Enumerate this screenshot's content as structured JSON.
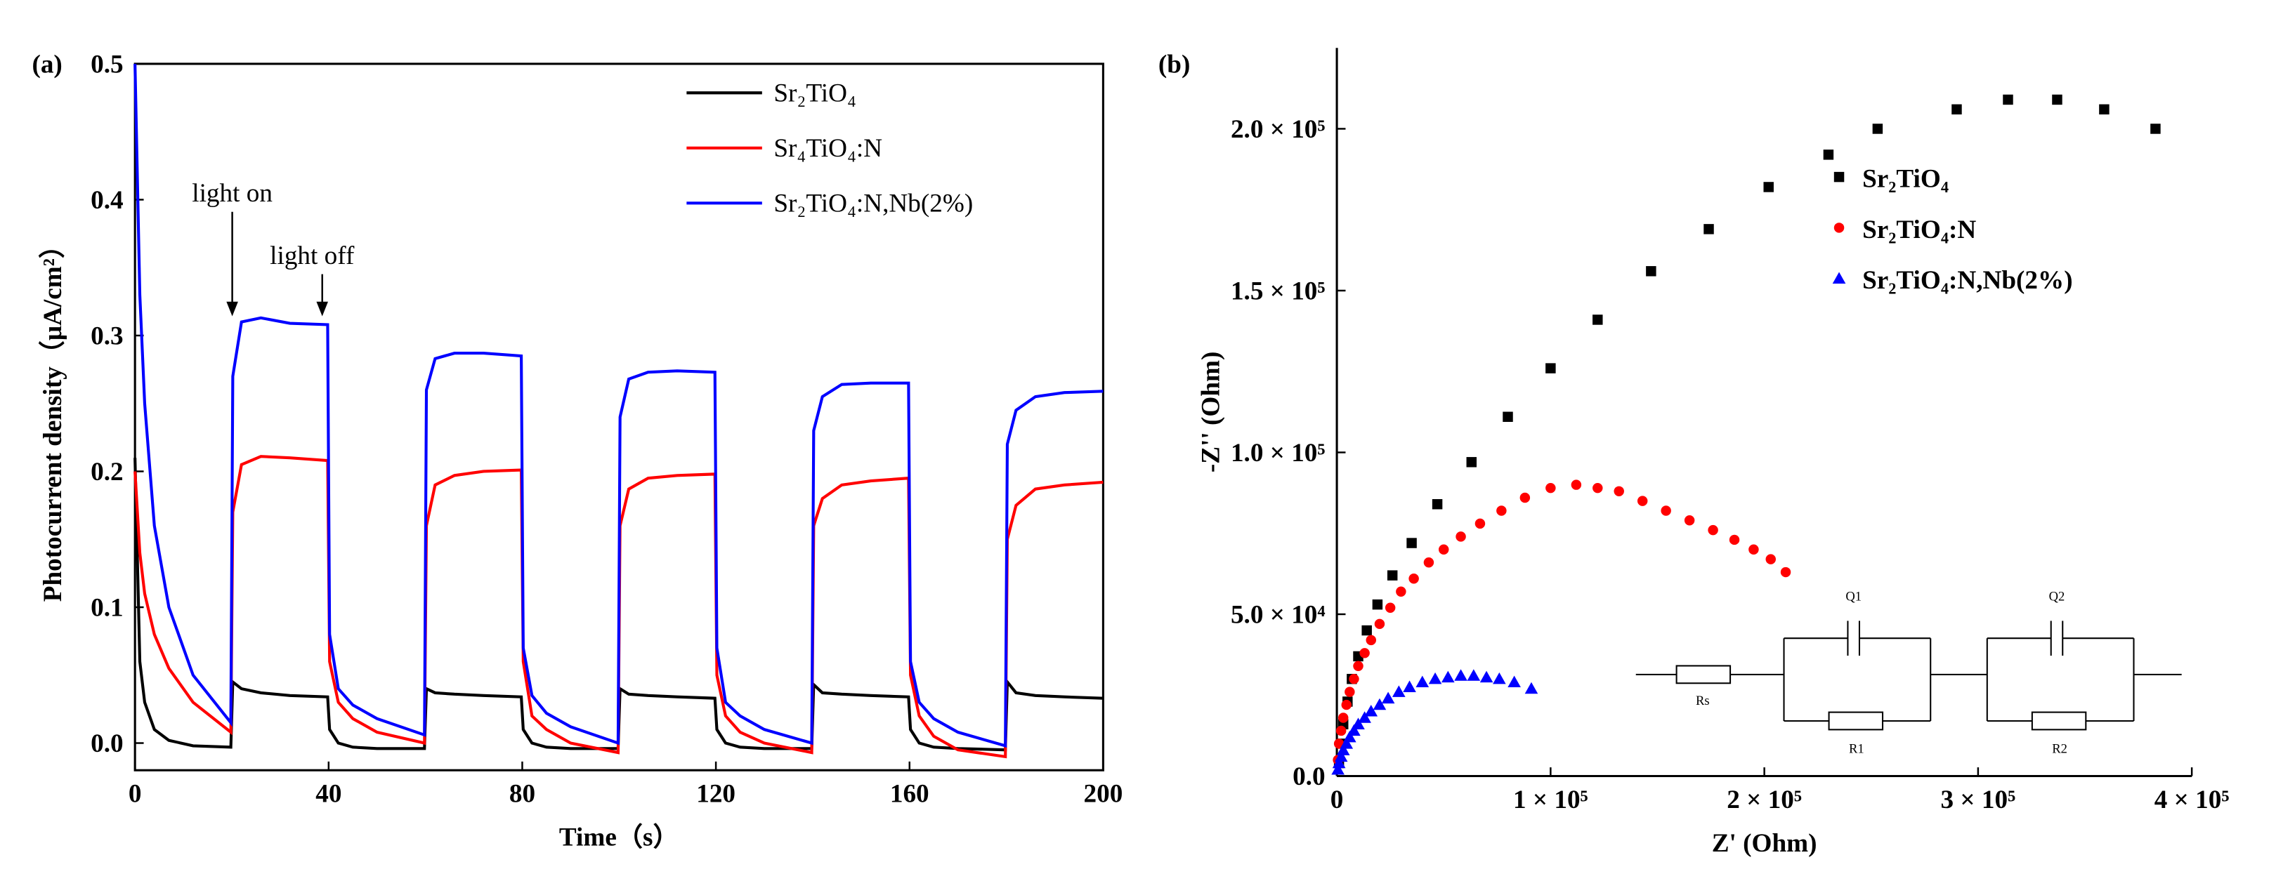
{
  "chart_data": [
    {
      "type": "line",
      "panel": "(a)",
      "x_label": "Time（s）",
      "y_label": "Photocurrent density（μA/cm²）",
      "annotations": [
        "light on",
        "light off"
      ],
      "x": [
        0,
        1,
        2,
        4,
        7,
        12,
        19.8,
        20.2,
        22,
        26,
        32,
        39.8,
        40.2,
        42,
        45,
        50,
        59.8,
        60.2,
        62,
        66,
        72,
        79.8,
        80.2,
        82,
        85,
        90,
        99.8,
        100.2,
        102,
        106,
        112,
        119.8,
        120.2,
        122,
        125,
        130,
        139.8,
        140.2,
        142,
        146,
        152,
        159.8,
        160.2,
        162,
        165,
        170,
        179.8,
        180.2,
        182,
        186,
        192,
        200
      ],
      "series": [
        {
          "name": "Sr₂TiO₄",
          "color": "#000000",
          "values": [
            0.21,
            0.06,
            0.03,
            0.01,
            0.002,
            -0.002,
            -0.003,
            0.045,
            0.04,
            0.037,
            0.035,
            0.034,
            0.01,
            0,
            -0.003,
            -0.004,
            -0.004,
            0.04,
            0.037,
            0.036,
            0.035,
            0.034,
            0.01,
            0,
            -0.003,
            -0.004,
            -0.004,
            0.04,
            0.036,
            0.035,
            0.034,
            0.033,
            0.01,
            0,
            -0.003,
            -0.004,
            -0.004,
            0.043,
            0.037,
            0.036,
            0.035,
            0.034,
            0.01,
            0,
            -0.003,
            -0.004,
            -0.005,
            0.045,
            0.037,
            0.035,
            0.034,
            0.033
          ]
        },
        {
          "name": "Sr₄TiO₄:N",
          "color": "#ff0000",
          "values": [
            0.2,
            0.14,
            0.11,
            0.08,
            0.055,
            0.03,
            0.008,
            0.17,
            0.205,
            0.211,
            0.21,
            0.208,
            0.06,
            0.03,
            0.018,
            0.008,
            0,
            0.16,
            0.19,
            0.197,
            0.2,
            0.201,
            0.06,
            0.02,
            0.01,
            0,
            -0.007,
            0.16,
            0.187,
            0.195,
            0.197,
            0.198,
            0.05,
            0.02,
            0.008,
            0,
            -0.007,
            0.16,
            0.18,
            0.19,
            0.193,
            0.195,
            0.05,
            0.02,
            0.005,
            -0.005,
            -0.01,
            0.15,
            0.175,
            0.187,
            0.19,
            0.192
          ]
        },
        {
          "name": "Sr₂TiO₄:N,Nb(2%)",
          "color": "#0000ff",
          "values": [
            0.5,
            0.33,
            0.25,
            0.16,
            0.1,
            0.05,
            0.015,
            0.27,
            0.31,
            0.313,
            0.309,
            0.308,
            0.08,
            0.04,
            0.028,
            0.018,
            0.006,
            0.26,
            0.283,
            0.287,
            0.287,
            0.285,
            0.07,
            0.035,
            0.022,
            0.012,
            0,
            0.24,
            0.268,
            0.273,
            0.274,
            0.273,
            0.07,
            0.03,
            0.02,
            0.01,
            0,
            0.23,
            0.255,
            0.264,
            0.265,
            0.265,
            0.06,
            0.03,
            0.018,
            0.008,
            -0.002,
            0.22,
            0.245,
            0.255,
            0.258,
            0.259
          ]
        }
      ],
      "xlim": [
        0,
        200
      ],
      "xticks": [
        0,
        40,
        80,
        120,
        160,
        200
      ],
      "ylim": [
        -0.02,
        0.5
      ],
      "yticks": [
        {
          "value": 0,
          "label": "0.0"
        },
        0.1,
        0.2,
        0.3,
        0.4,
        0.5
      ],
      "legend": "upper right",
      "frame": "box"
    },
    {
      "type": "scatter",
      "panel": "(b)",
      "x_label": "Z' (Ohm)",
      "y_label": "-Z'' (Ohm)",
      "circuit_labels": [
        "Rs",
        "Q1",
        "R1",
        "Q2",
        "R2"
      ],
      "series": [
        {
          "name": "Sr₂TiO₄",
          "color": "#000000",
          "marker": "square",
          "x": [
            1000,
            2000,
            3000,
            5000,
            7000,
            10000,
            14000,
            19000,
            26000,
            35000,
            47000,
            63000,
            80000,
            100000,
            122000,
            147000,
            174000,
            202000,
            230000,
            253000,
            290000,
            314000,
            337000,
            359000,
            383000
          ],
          "values": [
            4000,
            10000,
            16000,
            23000,
            30000,
            37000,
            45000,
            53000,
            62000,
            72000,
            84000,
            97000,
            111000,
            126000,
            141000,
            156000,
            169000,
            182000,
            192000,
            200000,
            206000,
            209000,
            209000,
            206000,
            200000
          ]
        },
        {
          "name": "Sr₂TiO₄:N",
          "color": "#ff0000",
          "marker": "circle",
          "x": [
            500,
            1000,
            2000,
            3000,
            4500,
            6000,
            8000,
            10000,
            13000,
            16000,
            20000,
            25000,
            30000,
            36000,
            43000,
            50000,
            58000,
            67000,
            77000,
            88000,
            100000,
            112000,
            122000,
            132000,
            143000,
            154000,
            165000,
            176000,
            186000,
            195000,
            203000,
            210000
          ],
          "values": [
            5000,
            10000,
            14000,
            18000,
            22000,
            26000,
            30000,
            34000,
            38000,
            42000,
            47000,
            52000,
            57000,
            61000,
            66000,
            70000,
            74000,
            78000,
            82000,
            86000,
            89000,
            90000,
            89000,
            88000,
            85000,
            82000,
            79000,
            76000,
            73000,
            70000,
            67000,
            63000
          ]
        },
        {
          "name": "Sr₂TiO₄:N,Nb(2%)",
          "color": "#0000ff",
          "marker": "triangle",
          "x": [
            500,
            1000,
            2000,
            3000,
            4500,
            6000,
            8000,
            10000,
            13000,
            16000,
            20000,
            24000,
            29000,
            34000,
            40000,
            46000,
            52000,
            58000,
            64000,
            70000,
            76000,
            83000,
            91000
          ],
          "values": [
            2000,
            4000,
            6000,
            8000,
            10000,
            12000,
            14000,
            16000,
            18000,
            20000,
            22000,
            24000,
            26000,
            27500,
            29000,
            30000,
            30500,
            31000,
            31000,
            30500,
            30000,
            29000,
            27000
          ]
        }
      ],
      "xlim": [
        0,
        400000
      ],
      "xticks": [
        0,
        {
          "value": 100000,
          "label": "1 × 10⁵"
        },
        {
          "value": 200000,
          "label": "2 × 10⁵"
        },
        {
          "value": 300000,
          "label": "3 × 10⁵"
        },
        {
          "value": 400000,
          "label": "4 × 10⁵"
        }
      ],
      "ylim": [
        0,
        225000
      ],
      "yticks": [
        {
          "value": 0,
          "label": "0.0"
        },
        {
          "value": 50000,
          "label": "5.0 × 10⁴"
        },
        {
          "value": 100000,
          "label": "1.0 × 10⁵"
        },
        {
          "value": 150000,
          "label": "1.5 × 10⁵"
        },
        {
          "value": 200000,
          "label": "2.0 × 10⁵"
        }
      ],
      "legend": "upper center",
      "frame": "axes"
    }
  ]
}
